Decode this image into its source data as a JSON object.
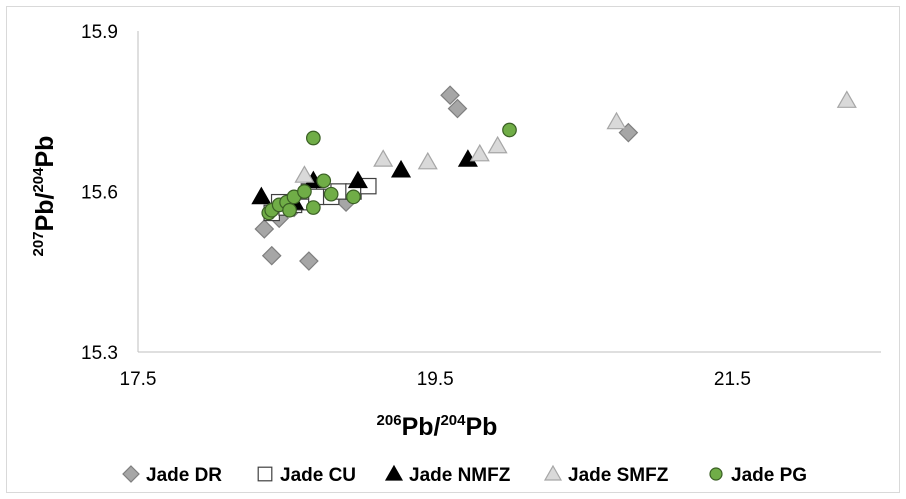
{
  "chart_data": {
    "type": "scatter",
    "xlabel_main": "Pb/",
    "xlabel_sup1": "206",
    "xlabel_sup2": "204",
    "xlabel_tail": "Pb",
    "ylabel_main": "Pb/",
    "ylabel_sup1": "207",
    "ylabel_sup2": "204",
    "ylabel_tail": "Pb",
    "xlim": [
      17.5,
      22.5
    ],
    "ylim": [
      15.3,
      15.9
    ],
    "xticks": [
      17.5,
      19.5,
      21.5
    ],
    "xtick_labels": [
      "17.5",
      "19.5",
      "21.5"
    ],
    "yticks": [
      15.3,
      15.6,
      15.9
    ],
    "ytick_labels": [
      "15.3",
      "15.6",
      "15.9"
    ],
    "grid": false,
    "legend_position": "bottom",
    "series": [
      {
        "name": "Jade DR",
        "marker": "diamond",
        "fill": "#a6a6a6",
        "stroke": "#7f7f7f",
        "points": [
          [
            18.35,
            15.53
          ],
          [
            18.4,
            15.48
          ],
          [
            18.45,
            15.55
          ],
          [
            18.5,
            15.57
          ],
          [
            18.55,
            15.57
          ],
          [
            18.65,
            15.47
          ],
          [
            18.9,
            15.58
          ],
          [
            19.6,
            15.78
          ],
          [
            19.65,
            15.755
          ],
          [
            20.8,
            15.71
          ]
        ]
      },
      {
        "name": "Jade CU",
        "marker": "square",
        "fill": "#ffffff",
        "stroke": "#404040",
        "points": [
          [
            18.4,
            15.56
          ],
          [
            18.45,
            15.58
          ],
          [
            18.5,
            15.57
          ],
          [
            18.55,
            15.575
          ],
          [
            18.6,
            15.58
          ],
          [
            18.65,
            15.6
          ],
          [
            18.7,
            15.59
          ],
          [
            18.8,
            15.59
          ],
          [
            18.85,
            15.6
          ],
          [
            18.95,
            15.6
          ],
          [
            19.05,
            15.61
          ]
        ]
      },
      {
        "name": "Jade NMFZ",
        "marker": "triangle",
        "fill": "#000000",
        "stroke": "#000000",
        "points": [
          [
            18.33,
            15.59
          ],
          [
            18.55,
            15.58
          ],
          [
            18.68,
            15.62
          ],
          [
            18.98,
            15.62
          ],
          [
            19.27,
            15.64
          ],
          [
            19.72,
            15.66
          ]
        ]
      },
      {
        "name": "Jade SMFZ",
        "marker": "triangle",
        "fill": "#d9d9d9",
        "stroke": "#a6a6a6",
        "points": [
          [
            18.62,
            15.63
          ],
          [
            19.15,
            15.66
          ],
          [
            19.45,
            15.655
          ],
          [
            19.8,
            15.67
          ],
          [
            19.92,
            15.685
          ],
          [
            20.72,
            15.73
          ],
          [
            22.27,
            15.77
          ]
        ]
      },
      {
        "name": "Jade PG",
        "marker": "circle",
        "fill": "#70ad47",
        "stroke": "#3a5f24",
        "points": [
          [
            18.38,
            15.56
          ],
          [
            18.4,
            15.565
          ],
          [
            18.45,
            15.575
          ],
          [
            18.5,
            15.58
          ],
          [
            18.52,
            15.565
          ],
          [
            18.55,
            15.59
          ],
          [
            18.62,
            15.6
          ],
          [
            18.68,
            15.57
          ],
          [
            18.75,
            15.62
          ],
          [
            18.8,
            15.595
          ],
          [
            18.95,
            15.59
          ],
          [
            18.68,
            15.7
          ],
          [
            20.0,
            15.715
          ]
        ]
      }
    ]
  }
}
